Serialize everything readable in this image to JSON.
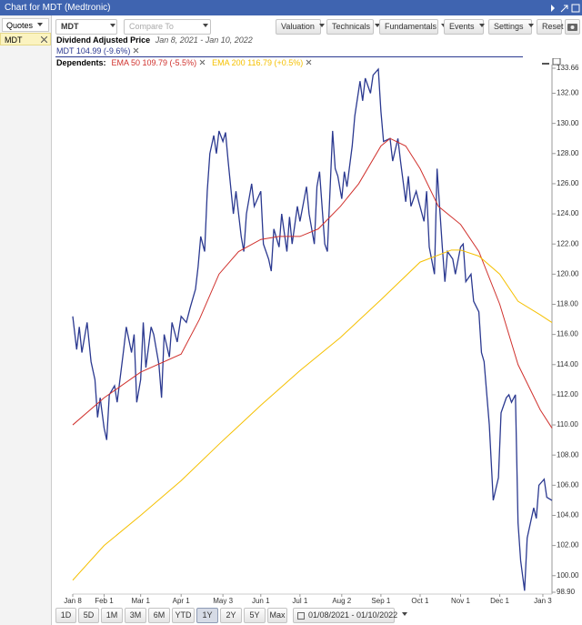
{
  "header": {
    "title": "Chart for MDT (Medtronic)"
  },
  "sidebar": {
    "dropdown": "Quotes",
    "symbol": "MDT"
  },
  "toolbar": {
    "symbol": "MDT",
    "compare": "Compare To",
    "buttons": [
      "Valuation",
      "Technicals",
      "Fundamentals",
      "Events",
      "Settings",
      "Reset"
    ]
  },
  "range_buttons": {
    "items": [
      "1D",
      "5D",
      "1M",
      "3M",
      "6M",
      "YTD",
      "1Y",
      "2Y",
      "5Y",
      "Max"
    ],
    "selected": "1Y",
    "date_range": "01/08/2021 - 01/10/2022"
  },
  "chart_data": {
    "type": "line",
    "title": "Dividend Adjusted Price",
    "subtitle": "Jan 8, 2021 - Jan 10, 2022",
    "dependents_label": "Dependents:",
    "xlim": [
      "2021-01-08",
      "2022-01-10"
    ],
    "xticks": [
      {
        "value": "2021-01-08",
        "label": "Jan 8"
      },
      {
        "value": "2021-02-01",
        "label": "Feb 1"
      },
      {
        "value": "2021-03-01",
        "label": "Mar 1"
      },
      {
        "value": "2021-04-01",
        "label": "Apr 1"
      },
      {
        "value": "2021-05-03",
        "label": "May 3"
      },
      {
        "value": "2021-06-01",
        "label": "Jun 1"
      },
      {
        "value": "2021-07-01",
        "label": "Jul 1"
      },
      {
        "value": "2021-08-02",
        "label": "Aug 2"
      },
      {
        "value": "2021-09-01",
        "label": "Sep 1"
      },
      {
        "value": "2021-10-01",
        "label": "Oct 1"
      },
      {
        "value": "2021-11-01",
        "label": "Nov 1"
      },
      {
        "value": "2021-12-01",
        "label": "Dec 1"
      },
      {
        "value": "2022-01-03",
        "label": "Jan 3"
      }
    ],
    "ylim": [
      98.9,
      133.66
    ],
    "yticks": [
      {
        "value": 98.9,
        "label": "98.90"
      },
      {
        "value": 100,
        "label": "100.00"
      },
      {
        "value": 102,
        "label": "102.00"
      },
      {
        "value": 104,
        "label": "104.00"
      },
      {
        "value": 106,
        "label": "106.00"
      },
      {
        "value": 108,
        "label": "108.00"
      },
      {
        "value": 110,
        "label": "110.00"
      },
      {
        "value": 112,
        "label": "112.00"
      },
      {
        "value": 114,
        "label": "114.00"
      },
      {
        "value": 116,
        "label": "116.00"
      },
      {
        "value": 118,
        "label": "118.00"
      },
      {
        "value": 120,
        "label": "120.00"
      },
      {
        "value": 122,
        "label": "122.00"
      },
      {
        "value": 124,
        "label": "124.00"
      },
      {
        "value": 126,
        "label": "126.00"
      },
      {
        "value": 128,
        "label": "128.00"
      },
      {
        "value": 130,
        "label": "130.00"
      },
      {
        "value": 132,
        "label": "132.00"
      },
      {
        "value": 133.66,
        "label": "133.66"
      }
    ],
    "grid": false,
    "series": [
      {
        "name": "MDT 104.99 (-9.6%)",
        "color": "#2b3990",
        "x": [
          "2021-01-08",
          "2021-01-11",
          "2021-01-13",
          "2021-01-15",
          "2021-01-19",
          "2021-01-22",
          "2021-01-25",
          "2021-01-27",
          "2021-01-29",
          "2021-02-01",
          "2021-02-03",
          "2021-02-05",
          "2021-02-09",
          "2021-02-11",
          "2021-02-16",
          "2021-02-18",
          "2021-02-22",
          "2021-02-24",
          "2021-02-26",
          "2021-03-01",
          "2021-03-03",
          "2021-03-05",
          "2021-03-09",
          "2021-03-11",
          "2021-03-15",
          "2021-03-17",
          "2021-03-19",
          "2021-03-23",
          "2021-03-25",
          "2021-03-29",
          "2021-04-01",
          "2021-04-05",
          "2021-04-08",
          "2021-04-12",
          "2021-04-14",
          "2021-04-16",
          "2021-04-19",
          "2021-04-21",
          "2021-04-23",
          "2021-04-26",
          "2021-04-28",
          "2021-04-30",
          "2021-05-03",
          "2021-05-05",
          "2021-05-07",
          "2021-05-11",
          "2021-05-13",
          "2021-05-17",
          "2021-05-19",
          "2021-05-21",
          "2021-05-25",
          "2021-05-27",
          "2021-06-01",
          "2021-06-03",
          "2021-06-07",
          "2021-06-09",
          "2021-06-11",
          "2021-06-15",
          "2021-06-17",
          "2021-06-21",
          "2021-06-23",
          "2021-06-25",
          "2021-06-29",
          "2021-07-01",
          "2021-07-06",
          "2021-07-08",
          "2021-07-12",
          "2021-07-14",
          "2021-07-16",
          "2021-07-20",
          "2021-07-22",
          "2021-07-26",
          "2021-07-28",
          "2021-07-30",
          "2021-08-02",
          "2021-08-04",
          "2021-08-06",
          "2021-08-10",
          "2021-08-12",
          "2021-08-16",
          "2021-08-18",
          "2021-08-20",
          "2021-08-24",
          "2021-08-26",
          "2021-08-30",
          "2021-09-01",
          "2021-09-03",
          "2021-09-08",
          "2021-09-10",
          "2021-09-14",
          "2021-09-16",
          "2021-09-20",
          "2021-09-22",
          "2021-09-24",
          "2021-09-28",
          "2021-09-30",
          "2021-10-04",
          "2021-10-06",
          "2021-10-08",
          "2021-10-12",
          "2021-10-14",
          "2021-10-18",
          "2021-10-20",
          "2021-10-22",
          "2021-10-26",
          "2021-10-28",
          "2021-11-01",
          "2021-11-03",
          "2021-11-05",
          "2021-11-09",
          "2021-11-11",
          "2021-11-15",
          "2021-11-17",
          "2021-11-19",
          "2021-11-23",
          "2021-11-26",
          "2021-11-30",
          "2021-12-02",
          "2021-12-06",
          "2021-12-08",
          "2021-12-10",
          "2021-12-13",
          "2021-12-15",
          "2021-12-17",
          "2021-12-20",
          "2021-12-22",
          "2021-12-27",
          "2021-12-29",
          "2021-12-31",
          "2022-01-04",
          "2022-01-06",
          "2022-01-10"
        ],
        "values": [
          117.2,
          115.0,
          116.5,
          114.8,
          116.8,
          114.2,
          113.0,
          110.5,
          111.8,
          109.8,
          109.0,
          112.0,
          112.6,
          111.5,
          115.0,
          116.5,
          114.8,
          116.0,
          111.5,
          113.0,
          116.8,
          113.8,
          116.5,
          116.0,
          114.0,
          111.8,
          116.0,
          114.5,
          116.8,
          115.5,
          117.2,
          116.8,
          117.8,
          119.0,
          120.5,
          122.5,
          121.5,
          125.5,
          128.0,
          129.2,
          128.0,
          129.5,
          128.8,
          129.4,
          127.5,
          124.0,
          125.5,
          122.5,
          121.5,
          124.0,
          126.0,
          124.5,
          125.5,
          122.0,
          121.0,
          120.2,
          123.0,
          121.8,
          124.0,
          121.5,
          123.8,
          122.0,
          124.5,
          123.5,
          125.8,
          124.0,
          122.0,
          125.8,
          126.8,
          122.0,
          121.5,
          129.5,
          127.0,
          126.5,
          125.0,
          126.8,
          125.8,
          128.5,
          130.5,
          132.8,
          131.5,
          133.0,
          132.0,
          133.2,
          133.6,
          130.8,
          128.8,
          129.0,
          127.5,
          129.0,
          127.5,
          124.8,
          126.5,
          124.5,
          125.5,
          124.8,
          123.5,
          125.5,
          121.8,
          120.0,
          127.0,
          121.8,
          119.5,
          121.5,
          121.0,
          120.0,
          121.8,
          122.0,
          119.5,
          120.0,
          118.2,
          117.5,
          114.8,
          114.2,
          110.0,
          105.0,
          106.5,
          110.8,
          111.8,
          112.0,
          111.5,
          112.0,
          103.5,
          101.0,
          99.0,
          102.5,
          104.5,
          103.8,
          106.0,
          106.4,
          105.2,
          104.99
        ]
      },
      {
        "name": "EMA 50 109.79 (-5.5%)",
        "color": "#d0312d",
        "x": [
          "2021-01-08",
          "2021-02-01",
          "2021-03-01",
          "2021-04-01",
          "2021-04-15",
          "2021-04-30",
          "2021-05-15",
          "2021-06-01",
          "2021-06-15",
          "2021-07-01",
          "2021-07-15",
          "2021-08-01",
          "2021-08-15",
          "2021-09-01",
          "2021-09-08",
          "2021-09-20",
          "2021-10-01",
          "2021-10-15",
          "2021-11-01",
          "2021-11-15",
          "2021-12-01",
          "2021-12-15",
          "2022-01-01",
          "2022-01-10"
        ],
        "values": [
          110.0,
          111.8,
          113.5,
          114.7,
          117.0,
          120.0,
          121.5,
          122.3,
          122.5,
          122.5,
          123.0,
          124.5,
          126.0,
          128.5,
          129.0,
          128.5,
          127.0,
          124.5,
          123.3,
          121.5,
          118.0,
          114.0,
          111.0,
          109.79
        ]
      },
      {
        "name": "EMA 200 116.79 (+0.5%)",
        "color": "#f5c000",
        "x": [
          "2021-01-08",
          "2021-02-01",
          "2021-03-01",
          "2021-04-01",
          "2021-05-01",
          "2021-06-01",
          "2021-07-01",
          "2021-08-01",
          "2021-09-01",
          "2021-10-01",
          "2021-10-25",
          "2021-11-01",
          "2021-11-15",
          "2021-12-01",
          "2021-12-15",
          "2022-01-01",
          "2022-01-10"
        ],
        "values": [
          99.7,
          102.0,
          104.0,
          106.3,
          108.8,
          111.3,
          113.6,
          115.8,
          118.3,
          120.8,
          121.6,
          121.6,
          121.2,
          120.0,
          118.2,
          117.3,
          116.79
        ]
      }
    ]
  }
}
